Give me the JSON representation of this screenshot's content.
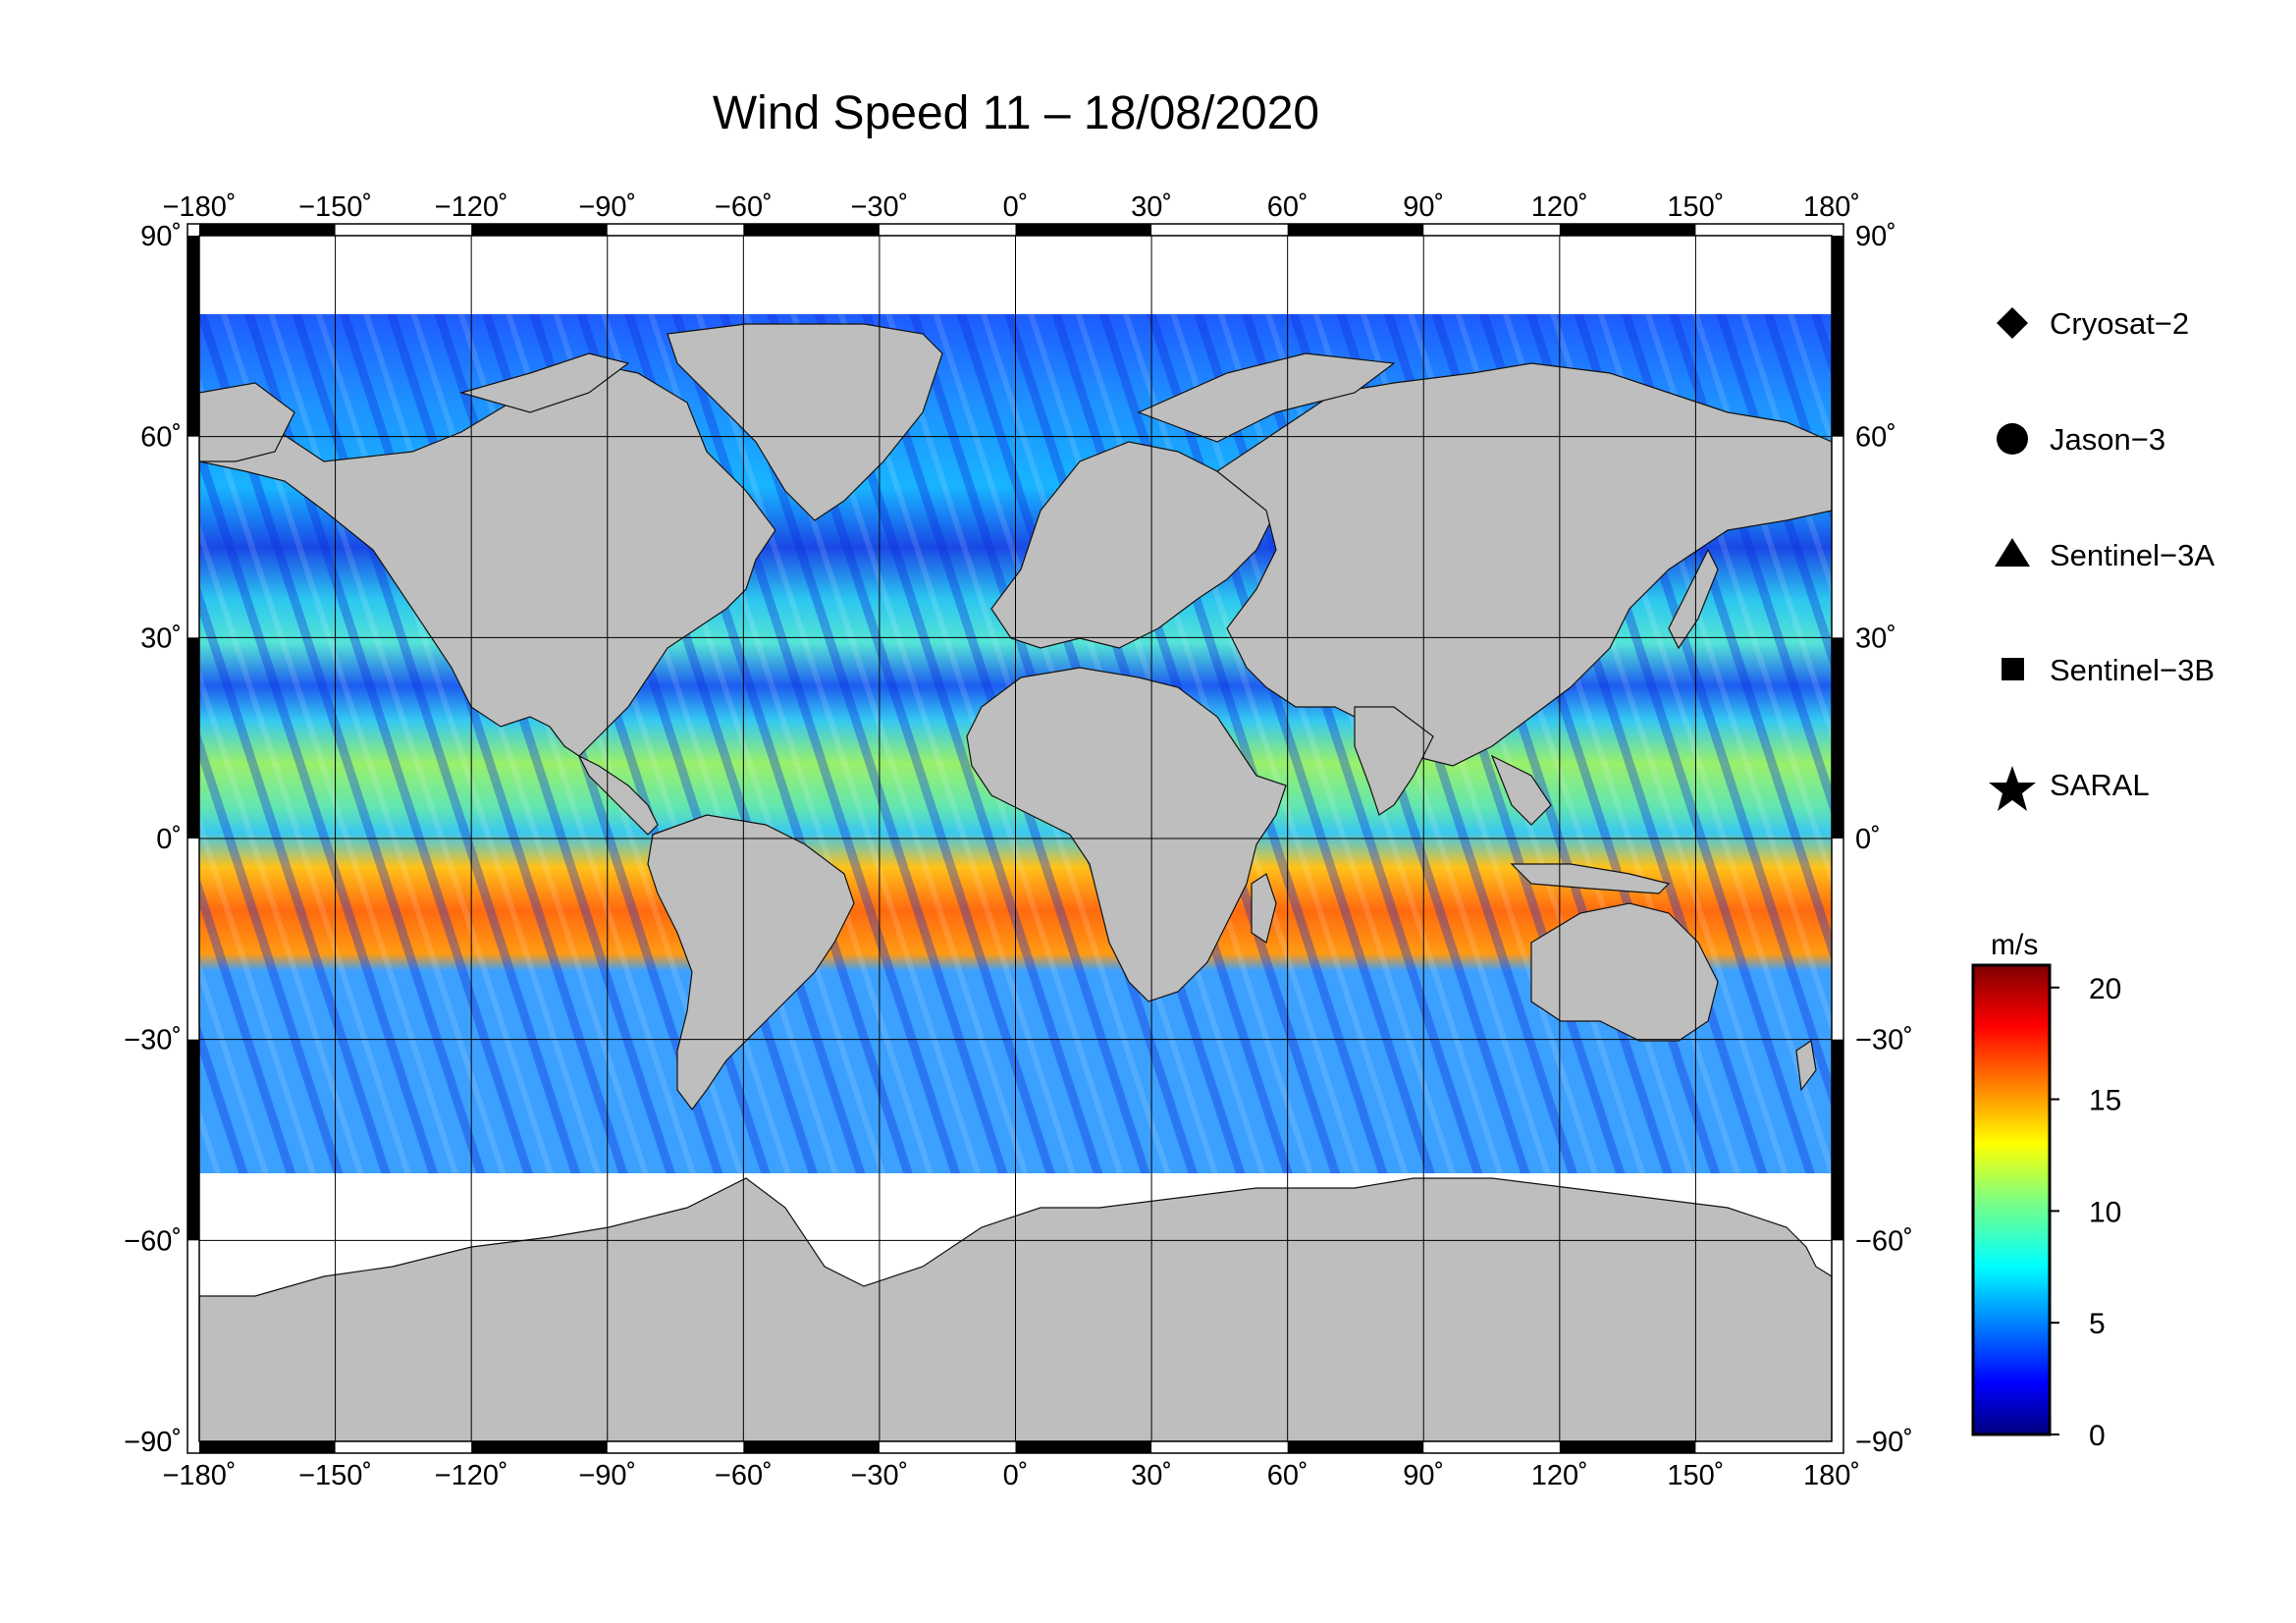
{
  "title": "Wind Speed 11 – 18/08/2020",
  "map": {
    "projection": "equirectangular",
    "lon_range": [
      -180,
      180
    ],
    "lat_range": [
      -90,
      90
    ],
    "lon_ticks": [
      "−180˚",
      "−150˚",
      "−120˚",
      "−90˚",
      "−60˚",
      "−30˚",
      "0˚",
      "30˚",
      "60˚",
      "90˚",
      "120˚",
      "150˚",
      "180˚"
    ],
    "lat_ticks": [
      "90˚",
      "60˚",
      "30˚",
      "0˚",
      "−30˚",
      "−60˚",
      "−90˚"
    ],
    "land_color": "#bebebe",
    "no_data_color": "#ffffff",
    "gridlines": true
  },
  "legend": {
    "items": [
      {
        "label": "Cryosat−2",
        "symbol": "diamond"
      },
      {
        "label": "Jason−3",
        "symbol": "circle"
      },
      {
        "label": "Sentinel−3A",
        "symbol": "triangle"
      },
      {
        "label": "Sentinel−3B",
        "symbol": "square"
      },
      {
        "label": "SARAL",
        "symbol": "star"
      }
    ]
  },
  "colorbar": {
    "unit": "m/s",
    "min": 0,
    "max": 21,
    "tick_labels": [
      "20",
      "15",
      "10",
      "5",
      "0"
    ],
    "colormap": "jet"
  }
}
